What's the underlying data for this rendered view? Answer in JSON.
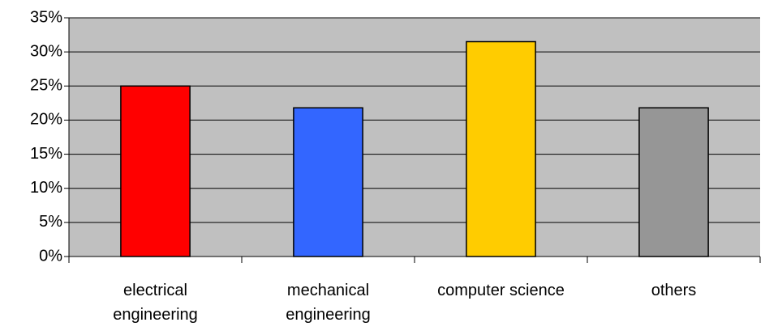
{
  "chart_data": {
    "type": "bar",
    "categories": [
      "electrical engineering",
      "mechanical engineering",
      "computer science",
      "others"
    ],
    "values": [
      25,
      21.8,
      31.5,
      21.8
    ],
    "colors": [
      "#ff0000",
      "#3366ff",
      "#ffcc00",
      "#969696"
    ],
    "ylim": [
      0,
      35
    ],
    "yticks": [
      {
        "value": 0,
        "label": "0%"
      },
      {
        "value": 5,
        "label": "5%"
      },
      {
        "value": 10,
        "label": "10%"
      },
      {
        "value": 15,
        "label": "15%"
      },
      {
        "value": 20,
        "label": "20%"
      },
      {
        "value": 25,
        "label": "25%"
      },
      {
        "value": 30,
        "label": "30%"
      },
      {
        "value": 35,
        "label": "35%"
      }
    ],
    "grid": true
  }
}
